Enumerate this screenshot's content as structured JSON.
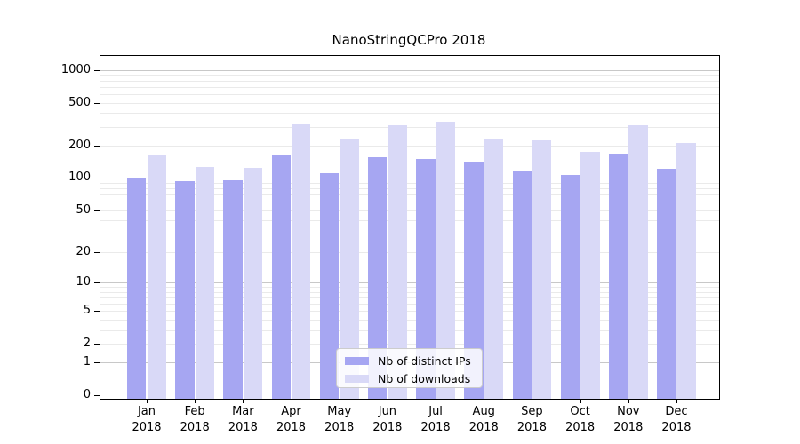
{
  "chart_data": {
    "type": "bar",
    "title": "NanoStringQCPro 2018",
    "categories": [
      "Jan",
      "Feb",
      "Mar",
      "Apr",
      "May",
      "Jun",
      "Jul",
      "Aug",
      "Sep",
      "Oct",
      "Nov",
      "Dec"
    ],
    "year": "2018",
    "series": [
      {
        "name": "Nb of distinct IPs",
        "color": "#a6a6f2",
        "values": [
          100,
          93,
          95,
          166,
          112,
          156,
          151,
          142,
          115,
          107,
          170,
          121
        ]
      },
      {
        "name": "Nb of downloads",
        "color": "#d9d9f7",
        "values": [
          163,
          128,
          125,
          315,
          235,
          312,
          334,
          232,
          224,
          176,
          309,
          210
        ]
      }
    ],
    "yscale": "log1p",
    "ylim": [
      0,
      1375
    ],
    "yticks": [
      1000,
      500,
      200,
      100,
      50,
      20,
      10,
      5,
      2,
      1,
      0
    ],
    "grid": true,
    "grid_major_values": [
      1,
      10,
      100,
      1000
    ],
    "grid_minor_values": [
      2,
      3,
      4,
      5,
      6,
      7,
      8,
      9,
      20,
      30,
      40,
      50,
      60,
      70,
      80,
      90,
      200,
      300,
      400,
      500,
      600,
      700,
      800,
      900
    ],
    "legend_position": "lower center",
    "colors": {
      "grid_major": "#c8c8c8",
      "grid_minor": "#eaeaea",
      "axis": "#000000",
      "legend_border": "#cccccc"
    }
  }
}
